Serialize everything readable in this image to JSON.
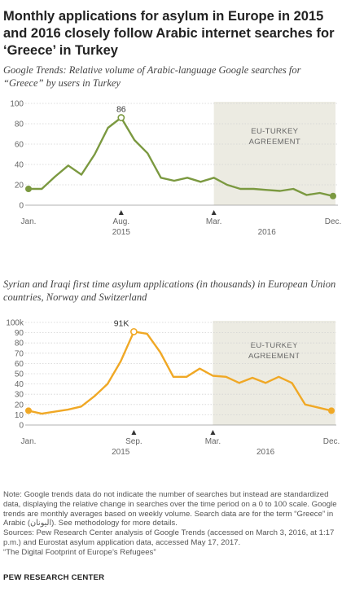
{
  "title": "Monthly applications for asylum in Europe in 2015 and 2016 closely follow Arabic internet searches for ‘Greece’ in Turkey",
  "colors": {
    "green": "#7b9940",
    "orange": "#f0a825",
    "shade": "#ecebe2"
  },
  "chart_data": [
    {
      "type": "line",
      "title": "Google Trends: Relative volume of Arabic-language Google searches for “Greece” by users in Turkey",
      "xlabel": "",
      "ylabel": "",
      "x": [
        "2015-01",
        "2015-02",
        "2015-03",
        "2015-04",
        "2015-05",
        "2015-06",
        "2015-07",
        "2015-08",
        "2015-09",
        "2015-10",
        "2015-11",
        "2015-12",
        "2016-01",
        "2016-02",
        "2016-03",
        "2016-04",
        "2016-05",
        "2016-06",
        "2016-07",
        "2016-08",
        "2016-09",
        "2016-10",
        "2016-11",
        "2016-12"
      ],
      "values": [
        16,
        16,
        28,
        39,
        30,
        50,
        76,
        86,
        64,
        51,
        27,
        24,
        27,
        23,
        27,
        20,
        16,
        16,
        15,
        14,
        16,
        10,
        12,
        9
      ],
      "ylim": [
        0,
        100
      ],
      "yticks": [
        "0",
        "20",
        "40",
        "60",
        "80",
        "100"
      ],
      "peak_label": "86",
      "peak_month": "2015-08",
      "shaded_from": "2016-03",
      "shaded_to": "2016-12",
      "shaded_label": [
        "EU-TURKEY",
        "AGREEMENT"
      ],
      "grid": true
    },
    {
      "type": "line",
      "title": "Syrian and Iraqi first time asylum applications (in thousands) in European Union countries, Norway and Switzerland",
      "xlabel": "",
      "ylabel": "",
      "x": [
        "2015-01",
        "2015-02",
        "2015-03",
        "2015-04",
        "2015-05",
        "2015-06",
        "2015-07",
        "2015-08",
        "2015-09",
        "2015-10",
        "2015-11",
        "2015-12",
        "2016-01",
        "2016-02",
        "2016-03",
        "2016-04",
        "2016-05",
        "2016-06",
        "2016-07",
        "2016-08",
        "2016-09",
        "2016-10",
        "2016-11",
        "2016-12"
      ],
      "values": [
        14,
        11,
        13,
        15,
        18,
        28,
        40,
        62,
        91,
        89,
        71,
        47,
        47,
        55,
        48,
        47,
        41,
        46,
        41,
        47,
        41,
        20,
        17,
        14
      ],
      "units": "thousands",
      "ylim": [
        0,
        100
      ],
      "yticks": [
        "0",
        "10",
        "20",
        "30",
        "40",
        "50",
        "60",
        "70",
        "80",
        "90",
        "100k"
      ],
      "peak_label": "91K",
      "peak_month": "2015-09",
      "shaded_from": "2016-03",
      "shaded_to": "2016-12",
      "shaded_label": [
        "EU-TURKEY",
        "AGREEMENT"
      ],
      "grid": true
    }
  ],
  "chart1_xticks": [
    {
      "month": "2015-01",
      "label": "Jan.",
      "marker": false
    },
    {
      "month": "2015-08",
      "label": "Aug.",
      "marker": true
    },
    {
      "month": "2016-03",
      "label": "Mar.",
      "marker": true
    },
    {
      "month": "2016-12",
      "label": "Dec.",
      "marker": false
    }
  ],
  "chart1_years": [
    {
      "month": "2015-08",
      "label": "2015"
    },
    {
      "month": "2016-07",
      "label": "2016"
    }
  ],
  "chart2_xticks": [
    {
      "month": "2015-01",
      "label": "Jan.",
      "marker": false
    },
    {
      "month": "2015-09",
      "label": "Sep.",
      "marker": true
    },
    {
      "month": "2016-03",
      "label": "Mar.",
      "marker": true
    },
    {
      "month": "2016-12",
      "label": "Dec.",
      "marker": false
    }
  ],
  "chart2_years": [
    {
      "month": "2015-08",
      "label": "2015"
    },
    {
      "month": "2016-07",
      "label": "2016"
    }
  ],
  "notes": [
    "Note: Google trends data do not indicate the number of searches but instead are standardized data, displaying the relative change in searches over the time period on a 0 to 100 scale. Google trends are monthly averages based on weekly volume. Search data are for the term “Greece” in Arabic (اليونان). See methodology for more details.",
    "Sources: Pew Research Center analysis of Google Trends (accessed on March 3, 2016, at 1:17 p.m.) and Eurostat asylum application data, accessed May 17, 2017.",
    "“The Digital Footprint of Europe’s Refugees”"
  ],
  "footer": "PEW RESEARCH CENTER"
}
